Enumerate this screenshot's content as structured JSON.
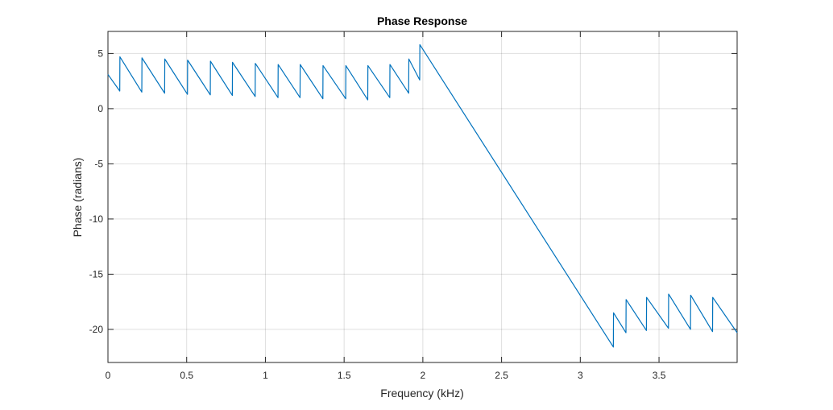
{
  "chart_data": {
    "type": "line",
    "title": "Phase Response",
    "xlabel": "Frequency (kHz)",
    "ylabel": "Phase (radians)",
    "xlim": [
      0,
      3.9961
    ],
    "ylim": [
      -23,
      7
    ],
    "grid": true,
    "legend": "none",
    "xticks": [
      0,
      0.5,
      1,
      1.5,
      2,
      2.5,
      3,
      3.5
    ],
    "xtick_labels": [
      "0",
      "0.5",
      "1",
      "1.5",
      "2",
      "2.5",
      "3",
      "3.5"
    ],
    "yticks": [
      5,
      0,
      -5,
      -10,
      -15,
      -20
    ],
    "ytick_labels": [
      "5",
      "0",
      "-5",
      "-10",
      "-15",
      "-20"
    ],
    "series": [
      {
        "color": "#0072BD",
        "x": [
          0,
          0.075,
          0.076,
          0.215,
          0.216,
          0.36,
          0.361,
          0.505,
          0.506,
          0.65,
          0.651,
          0.79,
          0.791,
          0.935,
          0.936,
          1.08,
          1.081,
          1.22,
          1.221,
          1.365,
          1.366,
          1.51,
          1.511,
          1.65,
          1.651,
          1.79,
          1.791,
          1.91,
          1.911,
          1.98,
          1.981,
          3.21,
          3.211,
          3.29,
          3.291,
          3.42,
          3.421,
          3.56,
          3.561,
          3.7,
          3.701,
          3.84,
          3.841,
          3.9961
        ],
        "y": [
          3.1,
          1.6,
          4.7,
          1.5,
          4.6,
          1.4,
          4.5,
          1.3,
          4.4,
          1.25,
          4.3,
          1.2,
          4.2,
          1.1,
          4.1,
          1.0,
          4.0,
          1.0,
          4.0,
          0.9,
          3.9,
          0.9,
          3.9,
          0.8,
          3.9,
          1.0,
          4.0,
          1.4,
          4.5,
          2.6,
          5.8,
          -21.6,
          -18.5,
          -20.3,
          -17.3,
          -20.1,
          -17.1,
          -19.9,
          -16.8,
          -20.0,
          -16.9,
          -20.2,
          -17.1,
          -20.3
        ]
      }
    ]
  }
}
